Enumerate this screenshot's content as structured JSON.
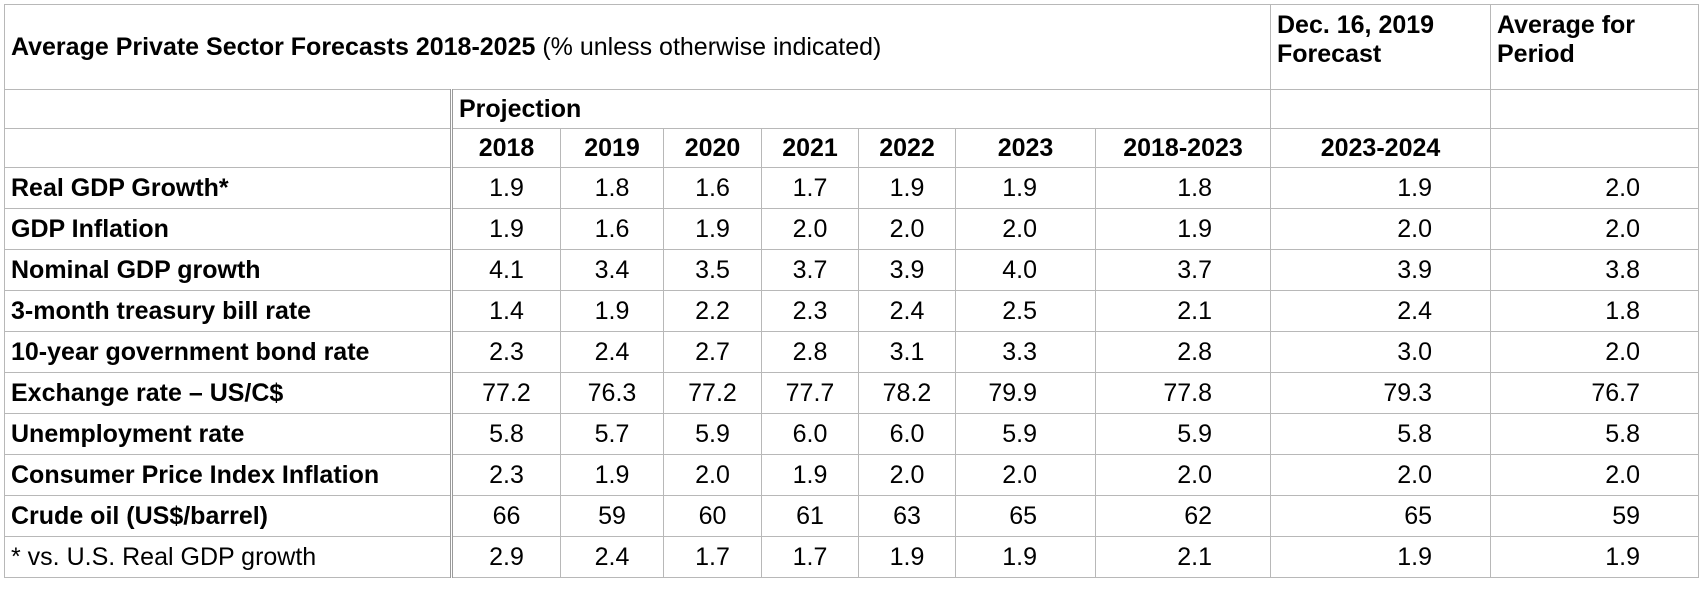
{
  "title": {
    "bold": "Average Private Sector Forecasts 2018-2025",
    "note": " (% unless otherwise indicated)"
  },
  "extra_headers": {
    "dec_forecast": [
      "Dec. 16, 2019",
      "Forecast"
    ],
    "average": [
      "Average for",
      "Period"
    ]
  },
  "projection_label": "Projection",
  "columns": [
    "2018",
    "2019",
    "2020",
    "2021",
    "2022",
    "2023",
    "2018-2023",
    "2023-2024",
    ""
  ],
  "rows": [
    {
      "label": "Real GDP Growth*",
      "values": [
        "1.9",
        "1.8",
        "1.6",
        "1.7",
        "1.9",
        "1.9",
        "1.8",
        "1.9",
        "2.0"
      ]
    },
    {
      "label": "GDP Inflation",
      "values": [
        "1.9",
        "1.6",
        "1.9",
        "2.0",
        "2.0",
        "2.0",
        "1.9",
        "2.0",
        "2.0"
      ]
    },
    {
      "label": "Nominal GDP growth",
      "values": [
        "4.1",
        "3.4",
        "3.5",
        "3.7",
        "3.9",
        "4.0",
        "3.7",
        "3.9",
        "3.8"
      ]
    },
    {
      "label": "3-month treasury bill rate",
      "values": [
        "1.4",
        "1.9",
        "2.2",
        "2.3",
        "2.4",
        "2.5",
        "2.1",
        "2.4",
        "1.8"
      ]
    },
    {
      "label": "10-year government bond rate",
      "values": [
        "2.3",
        "2.4",
        "2.7",
        "2.8",
        "3.1",
        "3.3",
        "2.8",
        "3.0",
        "2.0"
      ]
    },
    {
      "label": "Exchange rate – US/C$",
      "values": [
        "77.2",
        "76.3",
        "77.2",
        "77.7",
        "78.2",
        "79.9",
        "77.8",
        "79.3",
        "76.7"
      ]
    },
    {
      "label": "Unemployment rate",
      "values": [
        "5.8",
        "5.7",
        "5.9",
        "6.0",
        "6.0",
        "5.9",
        "5.9",
        "5.8",
        "5.8"
      ]
    },
    {
      "label": "Consumer Price Index Inflation",
      "values": [
        "2.3",
        "1.9",
        "2.0",
        "1.9",
        "2.0",
        "2.0",
        "2.0",
        "2.0",
        "2.0"
      ]
    },
    {
      "label": "Crude oil (US$/barrel)",
      "values": [
        "66",
        "59",
        "60",
        "61",
        "63",
        "65",
        "62",
        "65",
        "59"
      ]
    },
    {
      "label": "* vs. U.S. Real GDP growth",
      "values": [
        "2.9",
        "2.4",
        "1.7",
        "1.7",
        "1.9",
        "1.9",
        "2.1",
        "1.9",
        "1.9"
      ],
      "plain": true
    }
  ]
}
